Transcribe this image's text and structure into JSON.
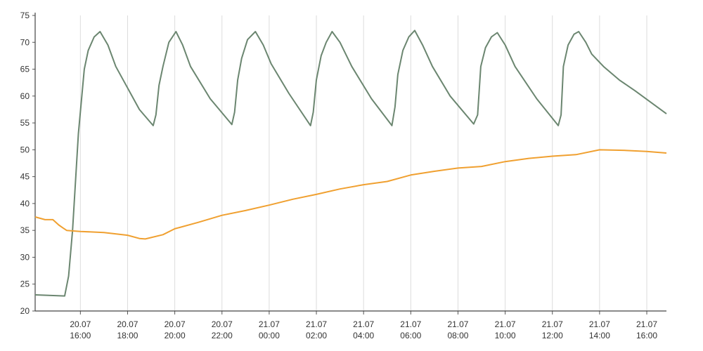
{
  "chart_data": {
    "type": "line",
    "xlim": [
      "20.07 14:05",
      "21.07 16:50"
    ],
    "ylim": [
      20,
      75
    ],
    "yticks": [
      20,
      25,
      30,
      35,
      40,
      45,
      50,
      55,
      60,
      65,
      70,
      75
    ],
    "xticks": [
      {
        "date": "20.07",
        "time": "16:00"
      },
      {
        "date": "20.07",
        "time": "18:00"
      },
      {
        "date": "20.07",
        "time": "20:00"
      },
      {
        "date": "20.07",
        "time": "22:00"
      },
      {
        "date": "21.07",
        "time": "00:00"
      },
      {
        "date": "21.07",
        "time": "02:00"
      },
      {
        "date": "21.07",
        "time": "04:00"
      },
      {
        "date": "21.07",
        "time": "06:00"
      },
      {
        "date": "21.07",
        "time": "08:00"
      },
      {
        "date": "21.07",
        "time": "10:00"
      },
      {
        "date": "21.07",
        "time": "12:00"
      },
      {
        "date": "21.07",
        "time": "14:00"
      },
      {
        "date": "21.07",
        "time": "16:00"
      }
    ],
    "grid": "x",
    "series": [
      {
        "color": "#6b8670",
        "x": [
          "20.07 14:05",
          "20.07 15:20",
          "20.07 15:30",
          "20.07 15:40",
          "20.07 15:55",
          "20.07 16:10",
          "20.07 16:20",
          "20.07 16:35",
          "20.07 16:50",
          "20.07 17:10",
          "20.07 17:30",
          "20.07 18:00",
          "20.07 18:30",
          "20.07 19:05",
          "20.07 19:12",
          "20.07 19:20",
          "20.07 19:30",
          "20.07 19:45",
          "20.07 20:03",
          "20.07 20:20",
          "20.07 20:40",
          "20.07 21:30",
          "20.07 22:25",
          "20.07 22:32",
          "20.07 22:40",
          "20.07 22:50",
          "20.07 23:05",
          "20.07 23:25",
          "20.07 23:45",
          "21.07 00:05",
          "21.07 00:50",
          "21.07 01:45",
          "21.07 01:52",
          "21.07 02:00",
          "21.07 02:12",
          "21.07 02:25",
          "21.07 02:40",
          "21.07 03:00",
          "21.07 03:30",
          "21.07 04:20",
          "21.07 05:12",
          "21.07 05:20",
          "21.07 05:27",
          "21.07 05:40",
          "21.07 05:55",
          "21.07 06:10",
          "21.07 06:30",
          "21.07 06:55",
          "21.07 07:40",
          "21.07 08:40",
          "21.07 08:50",
          "21.07 08:58",
          "21.07 09:10",
          "21.07 09:25",
          "21.07 09:40",
          "21.07 10:00",
          "21.07 10:25",
          "21.07 11:20",
          "21.07 12:15",
          "21.07 12:22",
          "21.07 12:28",
          "21.07 12:40",
          "21.07 12:55",
          "21.07 13:07",
          "21.07 13:25",
          "21.07 13:40",
          "21.07 14:10",
          "21.07 14:50",
          "21.07 15:30",
          "21.07 16:50"
        ],
        "values": [
          23,
          22.8,
          26.5,
          35,
          53,
          65,
          68.5,
          71,
          72,
          69.5,
          65.5,
          61.5,
          57.5,
          54.5,
          56.5,
          62,
          65.5,
          70,
          72,
          69.5,
          65.5,
          59.5,
          54.7,
          57,
          63,
          67,
          70.5,
          72,
          69.5,
          66,
          60.5,
          54.5,
          57,
          63,
          67.5,
          70,
          72,
          70,
          65.5,
          59.5,
          54.5,
          58,
          64,
          68.5,
          71,
          72.2,
          69.5,
          65.5,
          60,
          54.8,
          56.5,
          65.5,
          69,
          71,
          71.8,
          69.5,
          65.5,
          59.5,
          54.5,
          56.5,
          65.5,
          69.5,
          71.5,
          72,
          70,
          67.8,
          65.5,
          63,
          61,
          56.7
        ]
      },
      {
        "color": "#f0a030",
        "x": [
          "20.07 14:05",
          "20.07 14:30",
          "20.07 14:50",
          "20.07 15:05",
          "20.07 15:15",
          "20.07 15:25",
          "20.07 16:00",
          "20.07 17:00",
          "20.07 18:00",
          "20.07 18:30",
          "20.07 18:45",
          "20.07 19:30",
          "20.07 20:00",
          "20.07 21:00",
          "20.07 22:00",
          "20.07 23:00",
          "21.07 00:00",
          "21.07 01:00",
          "21.07 02:00",
          "21.07 03:00",
          "21.07 04:00",
          "21.07 05:00",
          "21.07 06:00",
          "21.07 07:00",
          "21.07 08:00",
          "21.07 09:00",
          "21.07 10:00",
          "21.07 11:00",
          "21.07 12:00",
          "21.07 13:00",
          "21.07 14:00",
          "21.07 15:00",
          "21.07 16:00",
          "21.07 16:50"
        ],
        "values": [
          37.5,
          37,
          37,
          36,
          35.5,
          35,
          34.8,
          34.6,
          34.1,
          33.5,
          33.4,
          34.2,
          35.3,
          36.5,
          37.8,
          38.7,
          39.7,
          40.8,
          41.7,
          42.7,
          43.5,
          44.1,
          45.3,
          46,
          46.6,
          46.9,
          47.8,
          48.4,
          48.8,
          49.1,
          50,
          49.9,
          49.7,
          49.4
        ]
      }
    ]
  }
}
